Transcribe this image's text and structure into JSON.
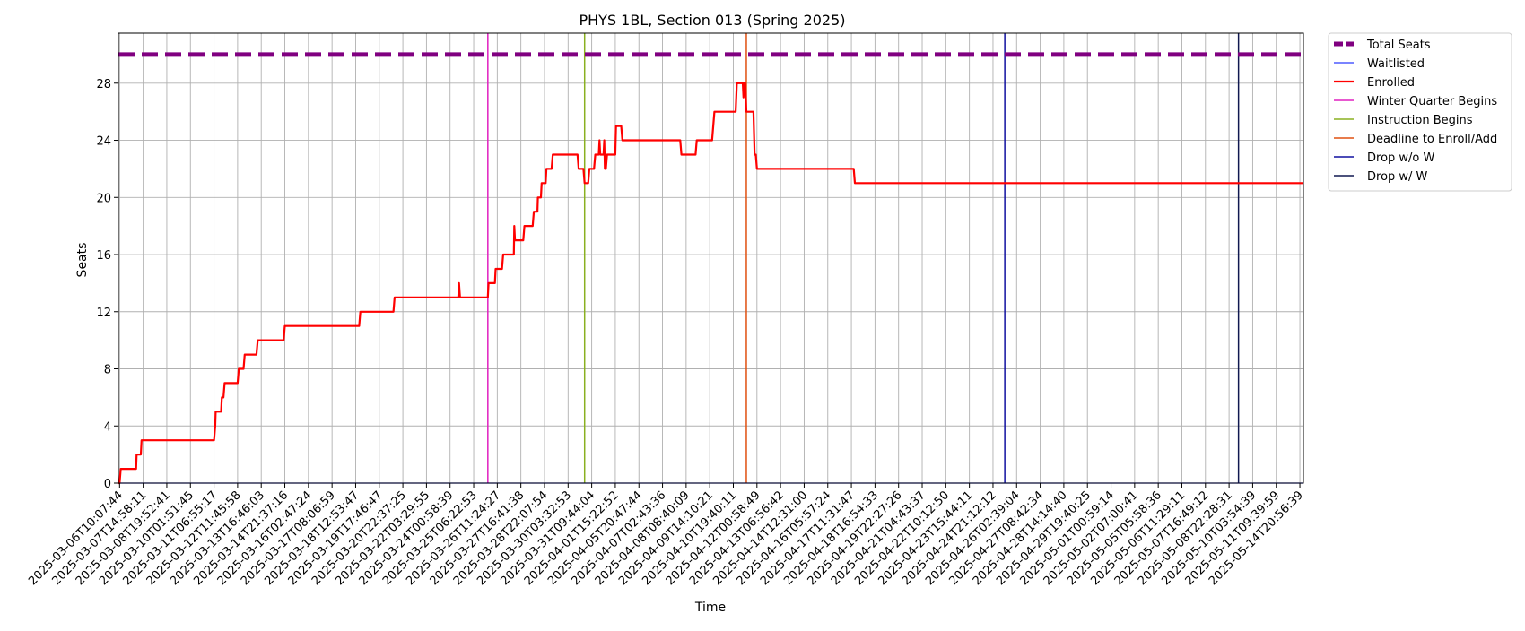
{
  "chart_data": {
    "type": "line",
    "title": "PHYS 1BL, Section 013 (Spring 2025)",
    "xlabel": "Time",
    "ylabel": "Seats",
    "ylim": [
      0,
      31.5
    ],
    "yticks": [
      0,
      4,
      8,
      12,
      16,
      20,
      24,
      28
    ],
    "grid": true,
    "legend_position": "outside-top-right",
    "x_tick_labels": [
      "2025-03-06T10:07:44",
      "2025-03-07T14:58:11",
      "2025-03-08T19:52:41",
      "2025-03-10T01:51:45",
      "2025-03-11T06:55:17",
      "2025-03-12T11:45:58",
      "2025-03-13T16:46:03",
      "2025-03-14T21:37:16",
      "2025-03-16T02:47:24",
      "2025-03-17T08:06:59",
      "2025-03-18T12:53:47",
      "2025-03-19T17:46:47",
      "2025-03-20T22:37:25",
      "2025-03-22T03:29:55",
      "2025-03-24T00:58:39",
      "2025-03-25T06:22:53",
      "2025-03-26T11:24:27",
      "2025-03-27T16:41:38",
      "2025-03-28T22:07:54",
      "2025-03-30T03:32:53",
      "2025-03-31T09:44:04",
      "2025-04-01T15:22:52",
      "2025-04-05T20:47:44",
      "2025-04-07T02:43:36",
      "2025-04-08T08:40:09",
      "2025-04-09T14:10:21",
      "2025-04-10T19:40:11",
      "2025-04-12T00:58:49",
      "2025-04-13T06:56:42",
      "2025-04-14T12:31:00",
      "2025-04-16T05:57:24",
      "2025-04-17T11:31:47",
      "2025-04-18T16:54:33",
      "2025-04-19T22:27:26",
      "2025-04-21T04:43:37",
      "2025-04-22T10:12:50",
      "2025-04-23T15:44:11",
      "2025-04-24T21:12:12",
      "2025-04-26T02:39:04",
      "2025-04-27T08:42:34",
      "2025-04-28T14:14:40",
      "2025-04-29T19:40:25",
      "2025-05-01T00:59:14",
      "2025-05-02T07:00:41",
      "2025-05-05T05:58:36",
      "2025-05-06T11:29:11",
      "2025-05-07T16:49:12",
      "2025-05-08T22:28:31",
      "2025-05-10T03:54:39",
      "2025-05-11T09:39:59",
      "2025-05-14T20:56:39"
    ],
    "x_range_ticks": [
      -0.05,
      50.15
    ],
    "series": [
      {
        "name": "Total Seats",
        "color": "#800080",
        "style": "dashed",
        "width": 5,
        "points": [
          [
            -0.05,
            30
          ],
          [
            50.15,
            30
          ]
        ]
      },
      {
        "name": "Waitlisted",
        "color": "#2b3bff",
        "style": "solid",
        "width": 1.2,
        "points": [
          [
            -0.05,
            0
          ],
          [
            50.15,
            0
          ]
        ]
      },
      {
        "name": "Enrolled",
        "color": "#ff0000",
        "style": "solid",
        "width": 2.2,
        "points": [
          [
            -0.05,
            0
          ],
          [
            0.0,
            0
          ],
          [
            0.05,
            1
          ],
          [
            0.7,
            1
          ],
          [
            0.72,
            2
          ],
          [
            0.9,
            2
          ],
          [
            0.93,
            3
          ],
          [
            4.0,
            3
          ],
          [
            4.05,
            4
          ],
          [
            4.07,
            5
          ],
          [
            4.3,
            5
          ],
          [
            4.33,
            6
          ],
          [
            4.4,
            6
          ],
          [
            4.45,
            7
          ],
          [
            5.0,
            7
          ],
          [
            5.05,
            8
          ],
          [
            5.25,
            8
          ],
          [
            5.3,
            9
          ],
          [
            5.8,
            9
          ],
          [
            5.85,
            10
          ],
          [
            6.95,
            10
          ],
          [
            7.0,
            11
          ],
          [
            10.15,
            11
          ],
          [
            10.2,
            12
          ],
          [
            11.6,
            12
          ],
          [
            11.65,
            13
          ],
          [
            14.35,
            13
          ],
          [
            14.38,
            14
          ],
          [
            14.42,
            13
          ],
          [
            15.6,
            13
          ],
          [
            15.63,
            14
          ],
          [
            15.9,
            14
          ],
          [
            15.93,
            15
          ],
          [
            16.2,
            15
          ],
          [
            16.25,
            16
          ],
          [
            16.7,
            16
          ],
          [
            16.72,
            18
          ],
          [
            16.75,
            17
          ],
          [
            17.1,
            17
          ],
          [
            17.15,
            18
          ],
          [
            17.5,
            18
          ],
          [
            17.55,
            19
          ],
          [
            17.7,
            19
          ],
          [
            17.72,
            20
          ],
          [
            17.85,
            20
          ],
          [
            17.88,
            21
          ],
          [
            18.05,
            21
          ],
          [
            18.08,
            22
          ],
          [
            18.3,
            22
          ],
          [
            18.35,
            23
          ],
          [
            19.4,
            23
          ],
          [
            19.45,
            22
          ],
          [
            19.65,
            22
          ],
          [
            19.7,
            21
          ],
          [
            19.85,
            21
          ],
          [
            19.9,
            22
          ],
          [
            20.1,
            22
          ],
          [
            20.15,
            23
          ],
          [
            20.3,
            23
          ],
          [
            20.33,
            24
          ],
          [
            20.36,
            23
          ],
          [
            20.5,
            23
          ],
          [
            20.53,
            24
          ],
          [
            20.56,
            22
          ],
          [
            20.6,
            22
          ],
          [
            20.65,
            23
          ],
          [
            21.0,
            23
          ],
          [
            21.03,
            25
          ],
          [
            21.25,
            25
          ],
          [
            21.3,
            24
          ],
          [
            23.75,
            24
          ],
          [
            23.8,
            23
          ],
          [
            24.4,
            23
          ],
          [
            24.45,
            24
          ],
          [
            25.1,
            24
          ],
          [
            25.15,
            25
          ],
          [
            25.2,
            26
          ],
          [
            26.1,
            26
          ],
          [
            26.15,
            28
          ],
          [
            26.4,
            28
          ],
          [
            26.43,
            27
          ],
          [
            26.46,
            28
          ],
          [
            26.5,
            28
          ],
          [
            26.55,
            26
          ],
          [
            26.85,
            26
          ],
          [
            26.9,
            23
          ],
          [
            26.95,
            23
          ],
          [
            27.0,
            22
          ],
          [
            31.1,
            22
          ],
          [
            31.15,
            21
          ],
          [
            50.15,
            21
          ]
        ]
      }
    ],
    "events": [
      {
        "name": "Winter Quarter Begins",
        "color": "#e020c0",
        "x": 15.6
      },
      {
        "name": "Instruction Begins",
        "color": "#8ab020",
        "x": 19.7
      },
      {
        "name": "Deadline to Enroll/Add",
        "color": "#e05010",
        "x": 26.55
      },
      {
        "name": "Drop w/o W",
        "color": "#1010a0",
        "x": 37.5
      },
      {
        "name": "Drop w/ W",
        "color": "#101850",
        "x": 47.4
      }
    ]
  }
}
